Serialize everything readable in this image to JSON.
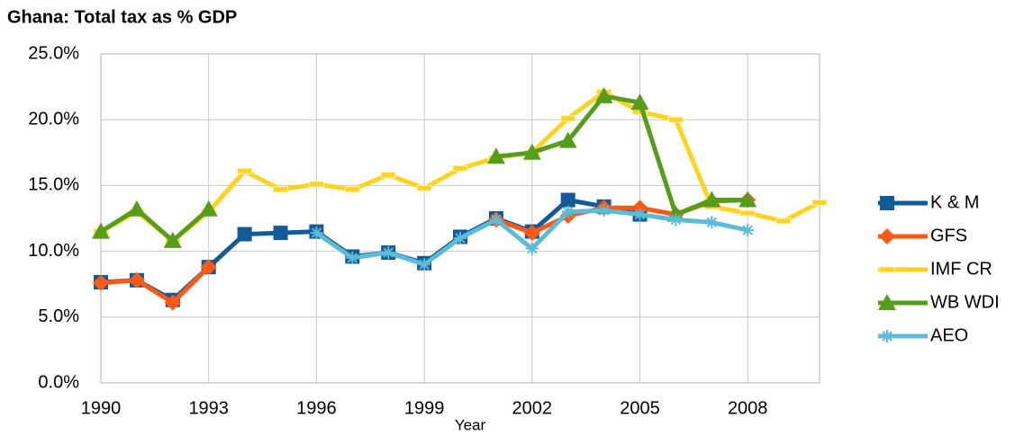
{
  "chart_data": {
    "type": "line",
    "title": "Ghana: Total tax as % GDP",
    "x_label": "Year",
    "x": [
      1990,
      1991,
      1992,
      1993,
      1994,
      1995,
      1996,
      1997,
      1998,
      1999,
      2000,
      2001,
      2002,
      2003,
      2004,
      2005,
      2006,
      2007,
      2008,
      2009,
      2010
    ],
    "xlim": [
      1990,
      2010
    ],
    "xticks": [
      1990,
      1993,
      1996,
      1999,
      2002,
      2005,
      2008
    ],
    "ylim": [
      0,
      25
    ],
    "yticks": [
      {
        "value": 0,
        "label": "0.0%"
      },
      {
        "value": 5,
        "label": "5.0%"
      },
      {
        "value": 10,
        "label": "10.0%"
      },
      {
        "value": 15,
        "label": "15.0%"
      },
      {
        "value": 20,
        "label": "20.0%"
      },
      {
        "value": 25,
        "label": "25.0%"
      }
    ],
    "grid": true,
    "legend": "right",
    "series": [
      {
        "name": "K & M",
        "color": "#125a98",
        "marker": "square",
        "values": [
          7.65,
          7.8,
          6.3,
          8.8,
          11.3,
          11.4,
          11.5,
          9.6,
          9.9,
          9.1,
          11.1,
          12.5,
          11.5,
          13.9,
          13.4,
          12.8,
          null,
          null,
          null,
          null,
          null
        ]
      },
      {
        "name": "GFS",
        "color": "#ff5a14",
        "marker": "diamond",
        "values": [
          7.6,
          7.8,
          6.1,
          8.8,
          null,
          null,
          null,
          null,
          null,
          null,
          null,
          12.4,
          11.4,
          12.7,
          13.3,
          13.3,
          12.8,
          13.8,
          13.9,
          null,
          null
        ]
      },
      {
        "name": "IMF CR",
        "color": "#ffd320",
        "marker": "bar",
        "values": [
          11.5,
          13.0,
          10.8,
          13.0,
          16.1,
          14.7,
          15.1,
          14.7,
          15.8,
          14.8,
          16.3,
          17.1,
          17.5,
          20.1,
          22.1,
          20.6,
          20.0,
          13.4,
          12.9,
          12.3,
          13.7
        ]
      },
      {
        "name": "WB WDI",
        "color": "#579d1c",
        "marker": "triangle",
        "values": [
          11.5,
          13.2,
          10.8,
          13.2,
          null,
          null,
          null,
          null,
          null,
          null,
          null,
          17.2,
          17.5,
          18.4,
          21.8,
          21.3,
          12.8,
          13.9,
          13.9,
          null,
          null
        ]
      },
      {
        "name": "AEO",
        "color": "#5cbbd6",
        "marker": "asterisk",
        "values": [
          null,
          null,
          null,
          null,
          null,
          null,
          11.4,
          9.5,
          9.9,
          9.0,
          11.0,
          12.4,
          10.2,
          13.0,
          13.1,
          12.8,
          12.4,
          12.2,
          11.6,
          null,
          null
        ]
      }
    ]
  }
}
